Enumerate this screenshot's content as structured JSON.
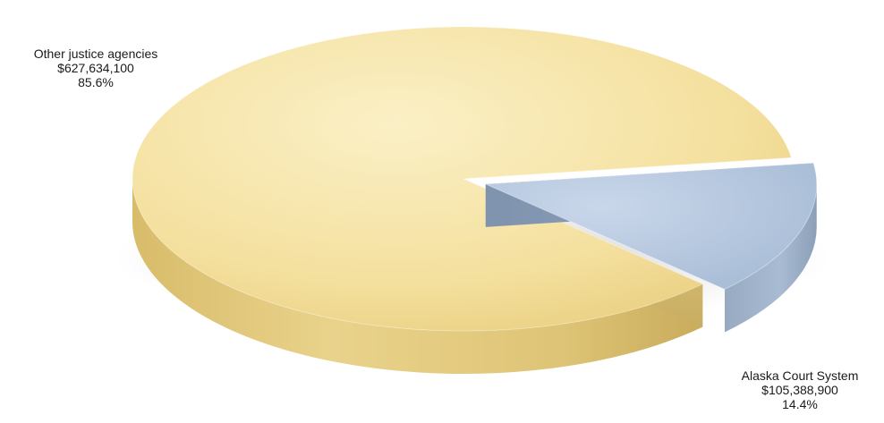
{
  "chart_data": {
    "type": "pie",
    "title": "",
    "style": "3d-exploded",
    "slices": [
      {
        "label": "Other justice agencies",
        "value": 627634100,
        "value_text": "$627,634,100",
        "percent": 85.6,
        "percent_text": "85.6%",
        "color": "#F3DE98"
      },
      {
        "label": "Alaska Court System",
        "value": 105388900,
        "value_text": "$105,388,900",
        "percent": 14.4,
        "percent_text": "14.4%",
        "color": "#AEC3DE",
        "exploded": true
      }
    ]
  }
}
